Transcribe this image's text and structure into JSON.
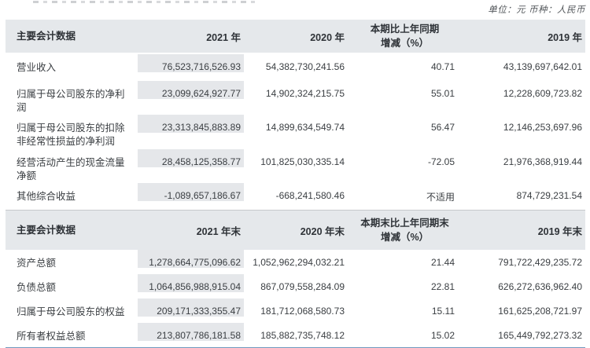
{
  "unit_line": "单位：元  币种：人民币",
  "table1": {
    "header": {
      "col1": "主要会计数据",
      "col2": "2021 年",
      "col3": "2020 年",
      "col4_line1": "本期比上年同期",
      "col4_line2": "增减（%）",
      "col5": "2019 年"
    },
    "rows": [
      {
        "label": "营业收入",
        "y2021": "76,523,716,526.93",
        "y2020": "54,382,730,241.56",
        "change": "40.71",
        "y2019": "43,139,697,642.01"
      },
      {
        "label": "归属于母公司股东的净利润",
        "y2021": "23,099,624,927.77",
        "y2020": "14,902,324,215.75",
        "change": "55.01",
        "y2019": "12,228,609,723.82"
      },
      {
        "label": "归属于母公司股东的扣除非经常性损益的净利润",
        "y2021": "23,313,845,883.89",
        "y2020": "14,899,634,549.74",
        "change": "56.47",
        "y2019": "12,146,253,697.96"
      },
      {
        "label": "经营活动产生的现金流量净额",
        "y2021": "28,458,125,358.77",
        "y2020": "101,825,030,335.14",
        "change": "-72.05",
        "y2019": "21,976,368,919.44"
      },
      {
        "label": "其他综合收益",
        "y2021": "-1,089,657,186.67",
        "y2020": "-668,241,580.46",
        "change": "不适用",
        "y2019": "874,729,231.54"
      }
    ]
  },
  "table2": {
    "header": {
      "col1": "主要会计数据",
      "col2": "2021 年末",
      "col3": "2020 年末",
      "col4_line1": "本期末比上年同期末",
      "col4_line2": "增减（%）",
      "col5": "2019 年末"
    },
    "rows": [
      {
        "label": "资产总额",
        "y2021": "1,278,664,775,096.62",
        "y2020": "1,052,962,294,032.21",
        "change": "21.44",
        "y2019": "791,722,429,235.72"
      },
      {
        "label": "负债总额",
        "y2021": "1,064,856,988,915.04",
        "y2020": "867,079,558,284.09",
        "change": "22.81",
        "y2019": "626,272,636,962.40"
      },
      {
        "label": "归属于母公司股东的权益",
        "y2021": "209,171,333,355.47",
        "y2020": "181,712,068,580.73",
        "change": "15.11",
        "y2019": "161,625,208,721.97"
      },
      {
        "label": "所有者权益总额",
        "y2021": "213,807,786,181.58",
        "y2020": "185,882,735,748.12",
        "change": "15.02",
        "y2019": "165,449,792,273.32"
      }
    ]
  }
}
